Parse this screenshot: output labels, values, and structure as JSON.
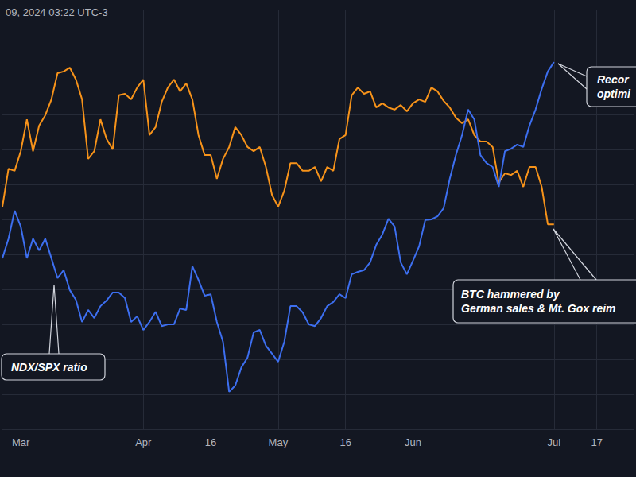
{
  "chart_data": {
    "type": "line",
    "title": "09, 2024 03:22 UTC-3",
    "categories": [
      null,
      null,
      null,
      "Mar",
      null,
      null,
      null,
      null,
      null,
      null,
      null,
      null,
      null,
      null,
      null,
      null,
      null,
      null,
      null,
      null,
      null,
      null,
      null,
      "Apr",
      null,
      null,
      null,
      null,
      null,
      null,
      null,
      null,
      null,
      null,
      "16",
      null,
      null,
      null,
      null,
      null,
      null,
      null,
      null,
      null,
      null,
      "May",
      null,
      null,
      null,
      null,
      null,
      null,
      null,
      null,
      null,
      null,
      "16",
      null,
      null,
      null,
      null,
      null,
      null,
      null,
      null,
      null,
      null,
      "Jun",
      null,
      null,
      null,
      null,
      null,
      null,
      null,
      null,
      null,
      null,
      null,
      null,
      null,
      null,
      null,
      null,
      null,
      null,
      null,
      null,
      null,
      null,
      "Jul",
      null,
      null,
      null,
      null,
      null,
      null,
      "17",
      null,
      null,
      null,
      null,
      null,
      null
    ],
    "series": [
      {
        "color": "#f7931a",
        "values": [
          6.36,
          7.45,
          7.39,
          7.95,
          8.86,
          7.95,
          8.68,
          8.98,
          9.43,
          10.18,
          10.23,
          10.34,
          10.0,
          9.43,
          7.73,
          7.95,
          8.86,
          8.3,
          8.0,
          9.55,
          9.59,
          9.43,
          9.77,
          10.0,
          8.41,
          8.64,
          9.36,
          9.77,
          10.0,
          9.66,
          9.89,
          9.43,
          8.41,
          7.84,
          7.84,
          7.16,
          7.73,
          8.07,
          8.64,
          8.41,
          8.07,
          7.95,
          8.07,
          7.5,
          6.7,
          6.36,
          6.82,
          7.61,
          7.61,
          7.39,
          7.39,
          7.5,
          7.09,
          7.5,
          7.39,
          8.3,
          8.41,
          9.55,
          9.77,
          9.59,
          9.66,
          9.2,
          9.32,
          9.2,
          9.14,
          9.27,
          9.09,
          9.32,
          9.43,
          9.36,
          9.77,
          9.66,
          9.39,
          9.2,
          8.91,
          8.75,
          8.86,
          8.41,
          8.23,
          8.23,
          8.07,
          7.05,
          7.32,
          7.27,
          7.39,
          6.93,
          7.5,
          7.5,
          6.93,
          5.86,
          5.86,
          null,
          null,
          null,
          null,
          null,
          null,
          null,
          null,
          null,
          null,
          null,
          null,
          null
        ]
      },
      {
        "name": "NDX/SPX ratio",
        "color": "#3d6ff0",
        "values": [
          4.89,
          5.45,
          6.25,
          5.8,
          4.89,
          5.45,
          5.11,
          5.45,
          4.89,
          4.32,
          4.55,
          3.98,
          3.7,
          3.07,
          3.41,
          3.18,
          3.52,
          3.68,
          3.91,
          3.91,
          3.75,
          3.07,
          3.23,
          2.84,
          3.07,
          3.36,
          2.95,
          3.0,
          3.0,
          3.45,
          3.41,
          4.66,
          4.27,
          3.82,
          3.86,
          3.07,
          2.5,
          1.07,
          1.25,
          1.77,
          2.05,
          2.77,
          2.84,
          2.39,
          2.16,
          1.93,
          2.5,
          3.52,
          3.52,
          3.34,
          3.0,
          2.95,
          3.18,
          3.52,
          3.64,
          3.86,
          3.75,
          4.43,
          4.5,
          4.55,
          4.77,
          5.27,
          5.57,
          6.02,
          5.8,
          4.77,
          4.43,
          4.82,
          5.23,
          5.98,
          6.0,
          6.09,
          6.32,
          7.16,
          7.84,
          8.41,
          9.14,
          8.86,
          7.84,
          7.61,
          7.5,
          6.93,
          7.95,
          8.02,
          8.14,
          8.07,
          8.68,
          9.14,
          9.73,
          10.23,
          10.5,
          null,
          null,
          null,
          null,
          null,
          null,
          null,
          null,
          null,
          null,
          null,
          null,
          null
        ]
      }
    ],
    "ylim": [
      0,
      12
    ],
    "yticks": [
      0,
      1,
      2,
      3,
      4,
      5,
      6,
      7,
      8,
      9,
      10,
      11,
      12
    ],
    "grid": true,
    "tick_labels": "x",
    "annotations": [
      "Recor\noptimi",
      "BTC hammered by\nGerman sales & Mt. Gox reim"
    ]
  }
}
